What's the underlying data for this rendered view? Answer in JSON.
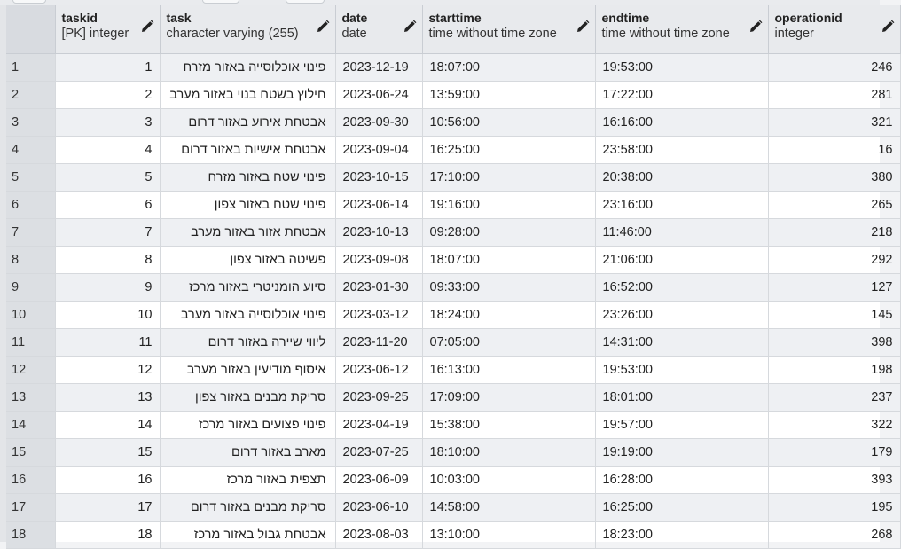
{
  "columns": [
    {
      "name": "taskid",
      "type": "[PK] integer"
    },
    {
      "name": "task",
      "type": "character varying (255)"
    },
    {
      "name": "date",
      "type": "date"
    },
    {
      "name": "starttime",
      "type": "time without time zone"
    },
    {
      "name": "endtime",
      "type": "time without time zone"
    },
    {
      "name": "operationid",
      "type": "integer"
    }
  ],
  "rows": [
    [
      "1",
      "1",
      "פינוי אוכלוסייה באזור מזרח",
      "2023-12-19",
      "18:07:00",
      "19:53:00",
      "246"
    ],
    [
      "2",
      "2",
      "חילוץ בשטח בנוי באזור מערב",
      "2023-06-24",
      "13:59:00",
      "17:22:00",
      "281"
    ],
    [
      "3",
      "3",
      "אבטחת אירוע באזור דרום",
      "2023-09-30",
      "10:56:00",
      "16:16:00",
      "321"
    ],
    [
      "4",
      "4",
      "אבטחת אישיות באזור דרום",
      "2023-09-04",
      "16:25:00",
      "23:58:00",
      "16"
    ],
    [
      "5",
      "5",
      "פינוי שטח באזור מזרח",
      "2023-10-15",
      "17:10:00",
      "20:38:00",
      "380"
    ],
    [
      "6",
      "6",
      "פינוי שטח באזור צפון",
      "2023-06-14",
      "19:16:00",
      "23:16:00",
      "265"
    ],
    [
      "7",
      "7",
      "אבטחת אזור באזור מערב",
      "2023-10-13",
      "09:28:00",
      "11:46:00",
      "218"
    ],
    [
      "8",
      "8",
      "פשיטה באזור צפון",
      "2023-09-08",
      "18:07:00",
      "21:06:00",
      "292"
    ],
    [
      "9",
      "9",
      "סיוע הומניטרי באזור מרכז",
      "2023-01-30",
      "09:33:00",
      "16:52:00",
      "127"
    ],
    [
      "10",
      "10",
      "פינוי אוכלוסייה באזור מערב",
      "2023-03-12",
      "18:24:00",
      "23:26:00",
      "145"
    ],
    [
      "11",
      "11",
      "ליווי שיירה באזור דרום",
      "2023-11-20",
      "07:05:00",
      "14:31:00",
      "398"
    ],
    [
      "12",
      "12",
      "איסוף מודיעין באזור מערב",
      "2023-06-12",
      "16:13:00",
      "19:53:00",
      "198"
    ],
    [
      "13",
      "13",
      "סריקת מבנים באזור צפון",
      "2023-09-25",
      "17:09:00",
      "18:01:00",
      "237"
    ],
    [
      "14",
      "14",
      "פינוי פצועים באזור מרכז",
      "2023-04-19",
      "15:38:00",
      "19:57:00",
      "322"
    ],
    [
      "15",
      "15",
      "מארב באזור דרום",
      "2023-07-25",
      "18:10:00",
      "19:19:00",
      "179"
    ],
    [
      "16",
      "16",
      "תצפית באזור מרכז",
      "2023-06-09",
      "10:03:00",
      "16:28:00",
      "393"
    ],
    [
      "17",
      "17",
      "סריקת מבנים באזור דרום",
      "2023-06-10",
      "14:58:00",
      "16:25:00",
      "195"
    ],
    [
      "18",
      "18",
      "אבטחת גבול באזור מרכז",
      "2023-08-03",
      "13:10:00",
      "18:23:00",
      "268"
    ]
  ]
}
